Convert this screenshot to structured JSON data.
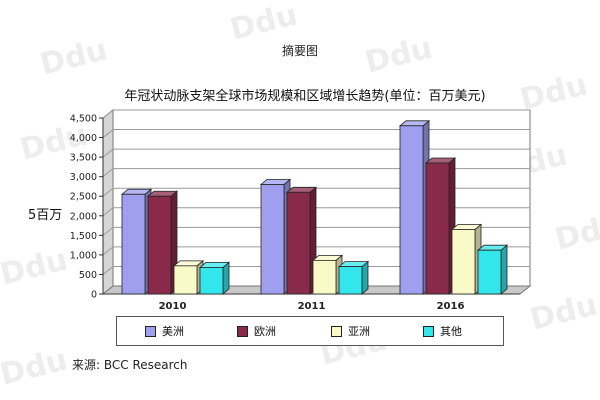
{
  "watermark": "Ddu",
  "summary_label": "摘要图",
  "side_label": "5百万",
  "source": "来源: BCC Research",
  "chart_data": {
    "type": "bar",
    "title": "年冠状动脉支架全球市场规模和区域增长趋势(单位：百万美元)",
    "categories": [
      "2010",
      "2011",
      "2016"
    ],
    "series": [
      {
        "name": "美洲",
        "values": [
          2550,
          2800,
          4300
        ],
        "color": "#9f9ff0"
      },
      {
        "name": "欧洲",
        "values": [
          2500,
          2600,
          3350
        ],
        "color": "#8a2a4a"
      },
      {
        "name": "亚洲",
        "values": [
          720,
          860,
          1650
        ],
        "color": "#fafac8"
      },
      {
        "name": "其他",
        "values": [
          680,
          700,
          1120
        ],
        "color": "#33e6ec"
      }
    ],
    "y_ticks": [
      "0",
      "500",
      "1,000",
      "1,500",
      "2,000",
      "2,500",
      "3,000",
      "3,500",
      "4,000",
      "4,500"
    ],
    "ylim": [
      0,
      4500
    ],
    "grid": true,
    "legend_position": "bottom"
  }
}
